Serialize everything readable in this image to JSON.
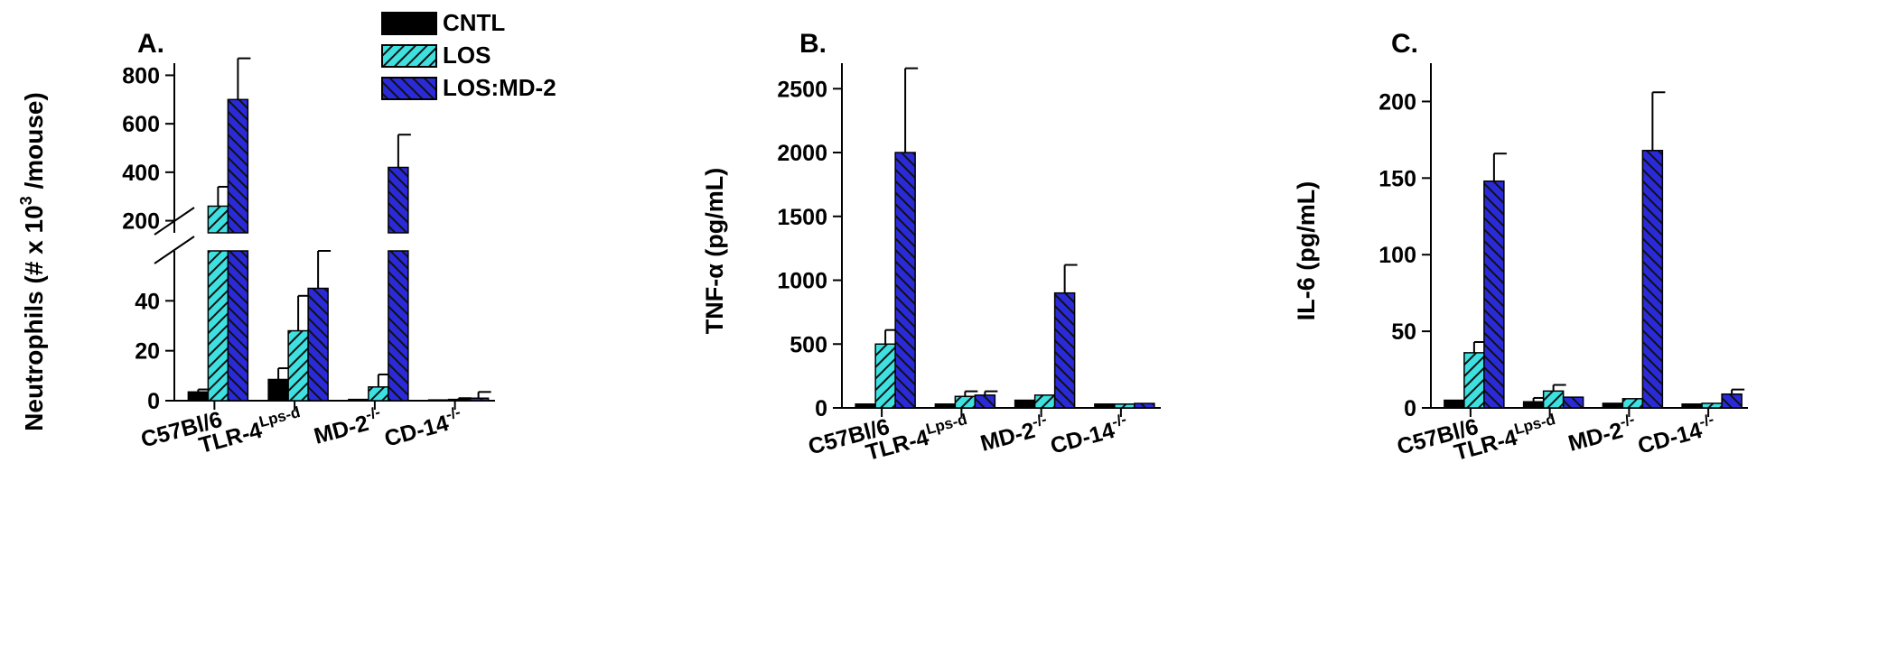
{
  "colors": {
    "CNTL": "#000000",
    "LOS": "#3ee0e0",
    "LOS:MD-2": "#2a2ad8",
    "hatch_line": "#111111"
  },
  "legend": {
    "position": "top",
    "entries": [
      "CNTL",
      "LOS",
      "LOS:MD-2"
    ]
  },
  "chart_data": [
    {
      "type": "bar",
      "panel_label": "A.",
      "ylabel_main": "Neutrophils (# x 10",
      "ylabel_sup": "3",
      "ylabel_tail": " /mouse)",
      "axis_break": true,
      "lower_segment": {
        "ylim": [
          0,
          60
        ],
        "ticks": [
          "0",
          "20",
          "40"
        ]
      },
      "upper_segment": {
        "ylim": [
          150,
          850
        ],
        "ticks": [
          "200",
          "400",
          "600",
          "800"
        ]
      },
      "categories": [
        {
          "base": "C57Bl/6",
          "sup": ""
        },
        {
          "base": "TLR-4",
          "sup": "Lps-d"
        },
        {
          "base": "MD-2",
          "sup": "-/-"
        },
        {
          "base": "CD-14",
          "sup": "-/-"
        }
      ],
      "series": [
        {
          "name": "CNTL",
          "values": [
            3.5,
            8.5,
            0.5,
            0.3
          ],
          "errors": [
            1.0,
            4.5,
            0.3,
            0.3
          ]
        },
        {
          "name": "LOS",
          "values": [
            260,
            28,
            5.5,
            0.5
          ],
          "errors": [
            80,
            14,
            5,
            0.5
          ]
        },
        {
          "name": "LOS:MD-2",
          "values": [
            700,
            45,
            420,
            1
          ],
          "errors": [
            170,
            20,
            135,
            2.5
          ]
        }
      ]
    },
    {
      "type": "bar",
      "panel_label": "B.",
      "ylabel": "TNF-α (pg/mL)",
      "ylim": [
        0,
        2700
      ],
      "ticks": [
        "0",
        "500",
        "1000",
        "1500",
        "2000",
        "2500"
      ],
      "categories": [
        {
          "base": "C57Bl/6",
          "sup": ""
        },
        {
          "base": "TLR-4",
          "sup": "Lps-d"
        },
        {
          "base": "MD-2",
          "sup": "-/-"
        },
        {
          "base": "CD-14",
          "sup": "-/-"
        }
      ],
      "series": [
        {
          "name": "CNTL",
          "values": [
            30,
            30,
            60,
            30
          ],
          "errors": [
            0,
            0,
            0,
            0
          ]
        },
        {
          "name": "LOS",
          "values": [
            500,
            90,
            100,
            30
          ],
          "errors": [
            110,
            40,
            0,
            0
          ]
        },
        {
          "name": "LOS:MD-2",
          "values": [
            2000,
            100,
            900,
            35
          ],
          "errors": [
            660,
            30,
            220,
            0
          ]
        }
      ]
    },
    {
      "type": "bar",
      "panel_label": "C.",
      "ylabel": "IL-6 (pg/mL)",
      "ylim": [
        0,
        225
      ],
      "ticks": [
        "0",
        "50",
        "100",
        "150",
        "200"
      ],
      "categories": [
        {
          "base": "C57Bl/6",
          "sup": ""
        },
        {
          "base": "TLR-4",
          "sup": "Lps-d"
        },
        {
          "base": "MD-2",
          "sup": "-/-"
        },
        {
          "base": "CD-14",
          "sup": "-/-"
        }
      ],
      "series": [
        {
          "name": "CNTL",
          "values": [
            5,
            4,
            3,
            2.5
          ],
          "errors": [
            0,
            2.5,
            0,
            0
          ]
        },
        {
          "name": "LOS",
          "values": [
            36,
            11,
            6,
            3
          ],
          "errors": [
            7,
            4,
            0,
            0
          ]
        },
        {
          "name": "LOS:MD-2",
          "values": [
            148,
            7,
            168,
            9
          ],
          "errors": [
            18,
            0,
            38,
            3
          ]
        }
      ]
    }
  ]
}
